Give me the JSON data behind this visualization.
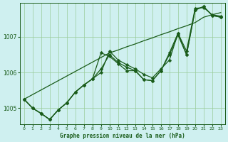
{
  "title": "Graphe pression niveau de la mer (hPa)",
  "bg_color": "#cff0f0",
  "grid_color": "#99cc99",
  "line_color": "#1a5c1a",
  "ylim": [
    1004.55,
    1007.95
  ],
  "yticks": [
    1005,
    1006,
    1007
  ],
  "xlim": [
    -0.5,
    23.5
  ],
  "xticks": [
    0,
    1,
    2,
    3,
    4,
    5,
    6,
    7,
    8,
    9,
    10,
    11,
    12,
    13,
    14,
    15,
    16,
    17,
    18,
    19,
    20,
    21,
    22,
    23
  ],
  "series_with_markers": [
    [
      1005.25,
      1005.0,
      1004.85,
      1004.68,
      1004.95,
      1005.15,
      1005.45,
      1005.65,
      1005.82,
      1006.55,
      1006.45,
      1006.25,
      1006.05,
      1006.05,
      1005.8,
      1005.77,
      1006.05,
      1006.5,
      1007.05,
      1006.5,
      1007.75,
      1007.85,
      1007.6,
      1007.55
    ],
    [
      1005.25,
      1005.0,
      1004.85,
      1004.68,
      1004.95,
      1005.15,
      1005.45,
      1005.65,
      1005.82,
      1006.1,
      1006.5,
      1006.28,
      1006.15,
      1006.05,
      1005.8,
      1005.77,
      1006.05,
      1006.55,
      1007.1,
      1006.5,
      1007.75,
      1007.85,
      1007.6,
      1007.55
    ],
    [
      1005.25,
      1005.0,
      1004.85,
      1004.68,
      1004.95,
      1005.15,
      1005.45,
      1005.65,
      1005.82,
      1006.0,
      1006.6,
      1006.35,
      1006.22,
      1006.1,
      1005.95,
      1005.85,
      1006.1,
      1006.35,
      1007.1,
      1006.6,
      1007.8,
      1007.82,
      1007.62,
      1007.58
    ]
  ],
  "series_straight": [
    [
      1005.25,
      1005.38,
      1005.51,
      1005.64,
      1005.77,
      1005.9,
      1006.03,
      1006.16,
      1006.29,
      1006.42,
      1006.55,
      1006.63,
      1006.72,
      1006.8,
      1006.89,
      1006.97,
      1007.06,
      1007.14,
      1007.23,
      1007.31,
      1007.4,
      1007.55,
      1007.62,
      1007.68
    ]
  ],
  "marker_size": 2.5,
  "linewidth": 0.9,
  "straight_linewidth": 0.9
}
